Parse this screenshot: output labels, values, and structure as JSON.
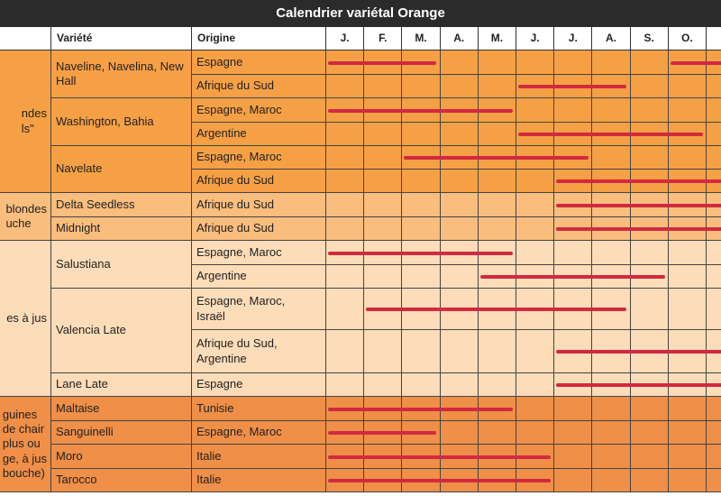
{
  "title": "Calendrier variétal Orange",
  "headers": {
    "variety": "Variété",
    "origin": "Origine",
    "months": [
      "J.",
      "F.",
      "M.",
      "A.",
      "M.",
      "J.",
      "J.",
      "A.",
      "S.",
      "O."
    ]
  },
  "colors": {
    "group1": "#f6a045",
    "group2": "#f9bd7e",
    "group3": "#fddcb9",
    "group4": "#ef8f48",
    "bar": "#d12a3f",
    "title_bg": "#2b2b2b"
  },
  "groups": [
    {
      "category": "ndes\nls\"",
      "color": "#f6a045",
      "varieties": [
        {
          "name": "Naveline, Navelina, New Hall",
          "rows": [
            {
              "origin": "Espagne",
              "bars": [
                [
                  1,
                  2.95
                ],
                [
                  10,
                  10.9
                ]
              ]
            },
            {
              "origin": "Afrique du Sud",
              "bars": [
                [
                  6,
                  7.95
                ]
              ]
            }
          ]
        },
        {
          "name": "Washington, Bahia",
          "rows": [
            {
              "origin": "Espagne, Maroc",
              "bars": [
                [
                  1,
                  4.95
                ]
              ]
            },
            {
              "origin": "Argentine",
              "bars": [
                [
                  6,
                  9.95
                ]
              ]
            }
          ]
        },
        {
          "name": "Navelate",
          "rows": [
            {
              "origin": "Espagne, Maroc",
              "bars": [
                [
                  3,
                  6.95
                ]
              ]
            },
            {
              "origin": "Afrique du Sud",
              "bars": [
                [
                  7,
                  10.5
                ]
              ]
            }
          ]
        }
      ]
    },
    {
      "category": "blondes\nuche",
      "color": "#f9bd7e",
      "varieties": [
        {
          "name": "Delta Seedless",
          "rows": [
            {
              "origin": "Afrique du Sud",
              "bars": [
                [
                  7,
                  10.9
                ]
              ]
            }
          ]
        },
        {
          "name": "Midnight",
          "rows": [
            {
              "origin": "Afrique du Sud",
              "bars": [
                [
                  7,
                  10.9
                ]
              ]
            }
          ]
        }
      ]
    },
    {
      "category": "es à jus",
      "color": "#fddcb9",
      "varieties": [
        {
          "name": "Salustiana",
          "rows": [
            {
              "origin": "Espagne, Maroc",
              "bars": [
                [
                  1,
                  4.95
                ]
              ]
            },
            {
              "origin": "Argentine",
              "bars": [
                [
                  5,
                  8.95
                ]
              ]
            }
          ]
        },
        {
          "name": "Valencia Late",
          "rows": [
            {
              "origin": "Espagne, Maroc,\nIsraël",
              "bars": [
                [
                  2,
                  7.95
                ]
              ]
            },
            {
              "origin": "Afrique du Sud,\nArgentine",
              "bars": [
                [
                  7,
                  10.5
                ]
              ]
            }
          ]
        },
        {
          "name": "Lane Late",
          "rows": [
            {
              "origin": "Espagne",
              "bars": [
                [
                  7,
                  10.5
                ]
              ]
            }
          ]
        }
      ]
    },
    {
      "category": "guines\nde chair\nplus ou\nge, à jus\nbouche)",
      "color": "#ef8f48",
      "varieties": [
        {
          "name": "Maltaise",
          "rows": [
            {
              "origin": "Tunisie",
              "bars": [
                [
                  1,
                  4.95
                ]
              ]
            }
          ]
        },
        {
          "name": "Sanguinelli",
          "rows": [
            {
              "origin": "Espagne, Maroc",
              "bars": [
                [
                  1,
                  2.95
                ]
              ]
            }
          ]
        },
        {
          "name": "Moro",
          "rows": [
            {
              "origin": "Italie",
              "bars": [
                [
                  1,
                  5.95
                ]
              ]
            }
          ]
        },
        {
          "name": "Tarocco",
          "rows": [
            {
              "origin": "Italie",
              "bars": [
                [
                  1,
                  5.95
                ]
              ]
            }
          ]
        }
      ]
    }
  ]
}
